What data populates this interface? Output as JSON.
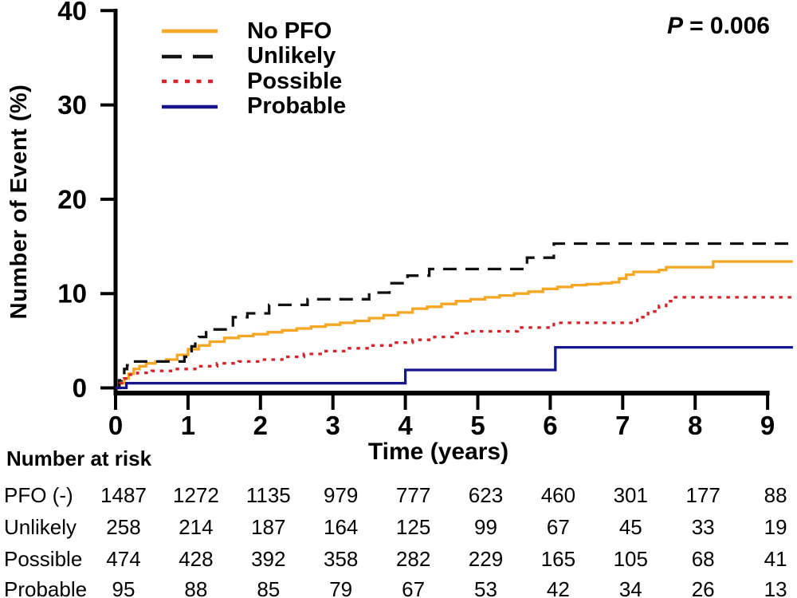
{
  "chart": {
    "p_label": "P",
    "p_value": "= 0.006"
  },
  "chart_data": {
    "type": "line",
    "subtype": "kaplan-meier-step",
    "title": "",
    "xlabel": "Time (years)",
    "ylabel": "Number of Event (%)",
    "xlim": [
      0,
      9.35
    ],
    "ylim": [
      0,
      40
    ],
    "x_ticks": [
      0,
      1,
      2,
      3,
      4,
      5,
      6,
      7,
      8,
      9
    ],
    "y_ticks": [
      0,
      10,
      20,
      30,
      40
    ],
    "grid": false,
    "legend_position": "top-left",
    "p_annotation": "P = 0.006",
    "series": [
      {
        "name": "No PFO",
        "color": "#F5A623",
        "line_style": "solid",
        "step_points": [
          [
            0,
            0
          ],
          [
            0.06,
            0.5
          ],
          [
            0.12,
            1.0
          ],
          [
            0.18,
            1.5
          ],
          [
            0.25,
            2.0
          ],
          [
            0.33,
            2.3
          ],
          [
            0.42,
            2.6
          ],
          [
            0.55,
            2.8
          ],
          [
            0.7,
            3.0
          ],
          [
            0.85,
            3.5
          ],
          [
            1.0,
            4.1
          ],
          [
            1.15,
            4.5
          ],
          [
            1.3,
            4.9
          ],
          [
            1.5,
            5.3
          ],
          [
            1.7,
            5.5
          ],
          [
            1.9,
            5.7
          ],
          [
            2.1,
            5.9
          ],
          [
            2.3,
            6.1
          ],
          [
            2.5,
            6.3
          ],
          [
            2.7,
            6.5
          ],
          [
            2.9,
            6.7
          ],
          [
            3.1,
            6.9
          ],
          [
            3.3,
            7.1
          ],
          [
            3.5,
            7.4
          ],
          [
            3.7,
            7.7
          ],
          [
            3.9,
            8.0
          ],
          [
            4.1,
            8.4
          ],
          [
            4.3,
            8.6
          ],
          [
            4.5,
            8.9
          ],
          [
            4.7,
            9.2
          ],
          [
            4.9,
            9.4
          ],
          [
            5.1,
            9.6
          ],
          [
            5.3,
            9.8
          ],
          [
            5.5,
            10.0
          ],
          [
            5.7,
            10.2
          ],
          [
            5.9,
            10.5
          ],
          [
            6.1,
            10.7
          ],
          [
            6.3,
            10.9
          ],
          [
            6.5,
            11.0
          ],
          [
            6.7,
            11.1
          ],
          [
            6.85,
            11.2
          ],
          [
            6.95,
            11.6
          ],
          [
            7.05,
            12.0
          ],
          [
            7.15,
            12.3
          ],
          [
            7.5,
            12.5
          ],
          [
            7.6,
            12.8
          ],
          [
            8.25,
            13.4
          ],
          [
            9.35,
            13.4
          ]
        ]
      },
      {
        "name": "Unlikely",
        "color": "#111111",
        "line_style": "long-dash",
        "step_points": [
          [
            0,
            0
          ],
          [
            0.05,
            0.8
          ],
          [
            0.08,
            1.4
          ],
          [
            0.12,
            2.0
          ],
          [
            0.16,
            2.4
          ],
          [
            0.2,
            2.8
          ],
          [
            0.9,
            2.8
          ],
          [
            0.95,
            3.3
          ],
          [
            1.0,
            3.9
          ],
          [
            1.05,
            4.4
          ],
          [
            1.1,
            4.9
          ],
          [
            1.15,
            5.4
          ],
          [
            1.25,
            6.2
          ],
          [
            1.55,
            6.2
          ],
          [
            1.62,
            7.5
          ],
          [
            1.82,
            7.9
          ],
          [
            2.12,
            8.8
          ],
          [
            2.65,
            9.4
          ],
          [
            3.5,
            10.1
          ],
          [
            3.78,
            11.1
          ],
          [
            4.03,
            11.9
          ],
          [
            4.33,
            12.6
          ],
          [
            5.68,
            13.8
          ],
          [
            6.05,
            15.3
          ],
          [
            9.35,
            15.3
          ]
        ]
      },
      {
        "name": "Possible",
        "color": "#D8232A",
        "line_style": "dotted",
        "step_points": [
          [
            0,
            0
          ],
          [
            0.06,
            0.5
          ],
          [
            0.12,
            1.0
          ],
          [
            0.18,
            1.4
          ],
          [
            0.3,
            1.6
          ],
          [
            0.5,
            1.8
          ],
          [
            0.8,
            2.0
          ],
          [
            1.1,
            2.3
          ],
          [
            1.4,
            2.6
          ],
          [
            1.7,
            2.8
          ],
          [
            2.0,
            3.0
          ],
          [
            2.3,
            3.3
          ],
          [
            2.6,
            3.6
          ],
          [
            2.9,
            3.9
          ],
          [
            3.2,
            4.2
          ],
          [
            3.5,
            4.5
          ],
          [
            3.8,
            4.8
          ],
          [
            4.1,
            5.1
          ],
          [
            4.4,
            5.4
          ],
          [
            4.7,
            5.8
          ],
          [
            4.85,
            6.0
          ],
          [
            5.45,
            6.0
          ],
          [
            5.55,
            6.4
          ],
          [
            6.05,
            6.9
          ],
          [
            7.1,
            6.9
          ],
          [
            7.2,
            7.5
          ],
          [
            7.35,
            8.1
          ],
          [
            7.5,
            8.7
          ],
          [
            7.6,
            9.2
          ],
          [
            7.7,
            9.6
          ],
          [
            9.35,
            9.6
          ]
        ]
      },
      {
        "name": "Probable",
        "color": "#15158C",
        "line_style": "solid",
        "step_points": [
          [
            0,
            0
          ],
          [
            0.15,
            0.5
          ],
          [
            4.0,
            1.9
          ],
          [
            6.07,
            4.3
          ],
          [
            9.35,
            4.3
          ]
        ]
      }
    ]
  },
  "risk_table": {
    "title": "Number at risk",
    "time_points": [
      0,
      1,
      2,
      3,
      4,
      5,
      6,
      7,
      8,
      9
    ],
    "rows": [
      {
        "label": "PFO (-)",
        "values": [
          1487,
          1272,
          1135,
          979,
          777,
          623,
          460,
          301,
          177,
          88
        ]
      },
      {
        "label": "Unlikely",
        "values": [
          258,
          214,
          187,
          164,
          125,
          99,
          67,
          45,
          33,
          19
        ]
      },
      {
        "label": "Possible",
        "values": [
          474,
          428,
          392,
          358,
          282,
          229,
          165,
          105,
          68,
          41
        ]
      },
      {
        "label": "Probable",
        "values": [
          95,
          88,
          85,
          79,
          67,
          53,
          42,
          34,
          26,
          13
        ]
      }
    ]
  }
}
